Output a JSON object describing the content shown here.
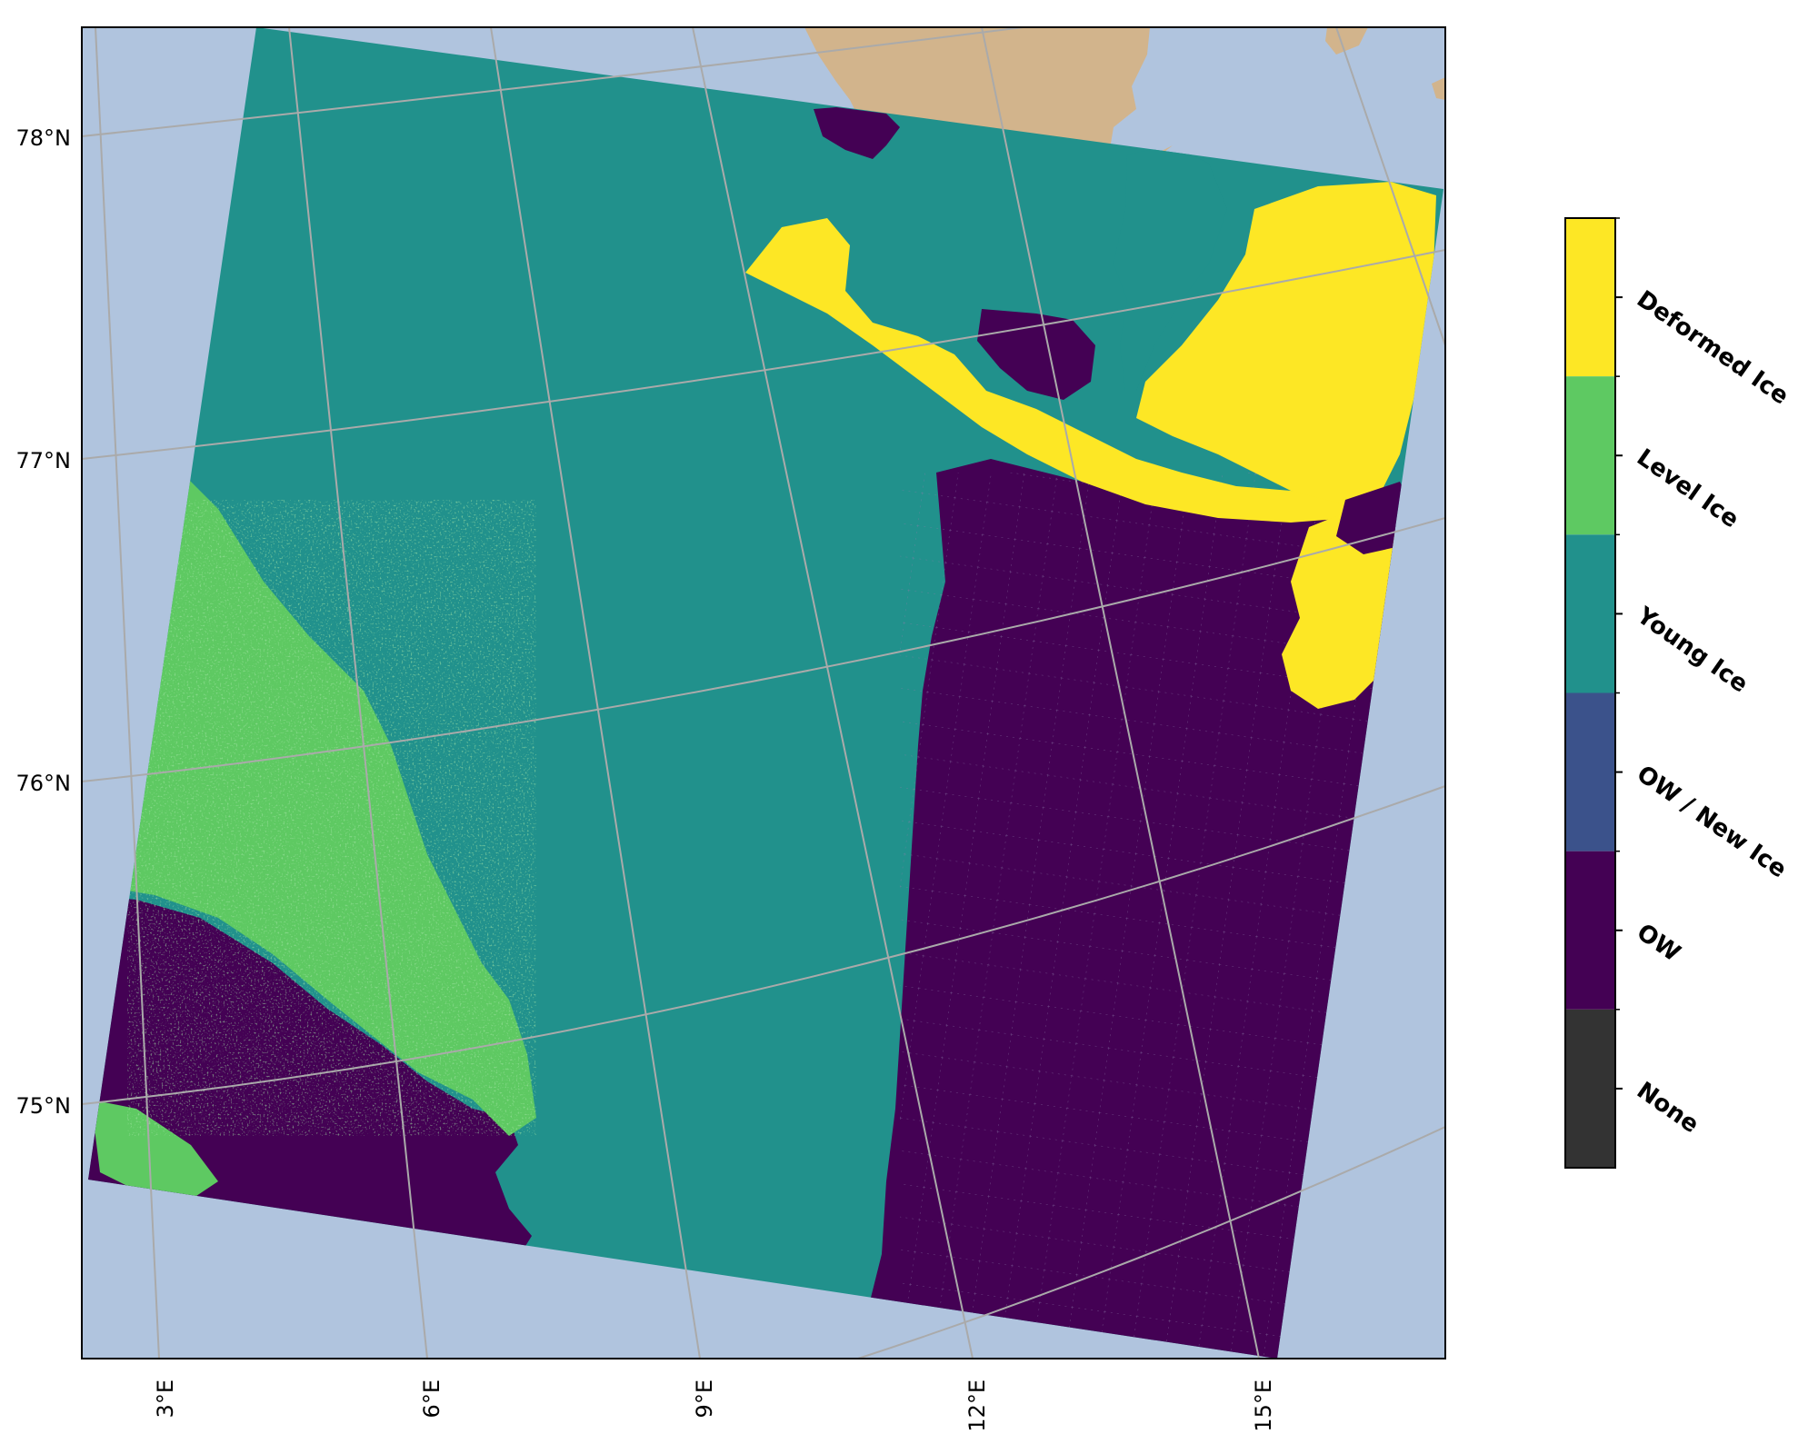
{
  "map": {
    "background_color": "#b0c4de",
    "land_color": "#d2b48c",
    "gridline_color": "#aaaaaa",
    "frame_color": "#000000",
    "latitude_labels": [
      "78°N",
      "77°N",
      "76°N",
      "75°N"
    ],
    "longitude_labels": [
      "3°E",
      "6°E",
      "9°E",
      "12°E",
      "15°E"
    ]
  },
  "legend": {
    "classes": [
      {
        "label": "Deformed Ice",
        "color": "#fde725"
      },
      {
        "label": "Level Ice",
        "color": "#5ec962"
      },
      {
        "label": "Young Ice",
        "color": "#21918c"
      },
      {
        "label": "OW / New Ice",
        "color": "#3b528b"
      },
      {
        "label": "OW",
        "color": "#440154"
      },
      {
        "label": "None",
        "color": "#333333"
      }
    ]
  }
}
